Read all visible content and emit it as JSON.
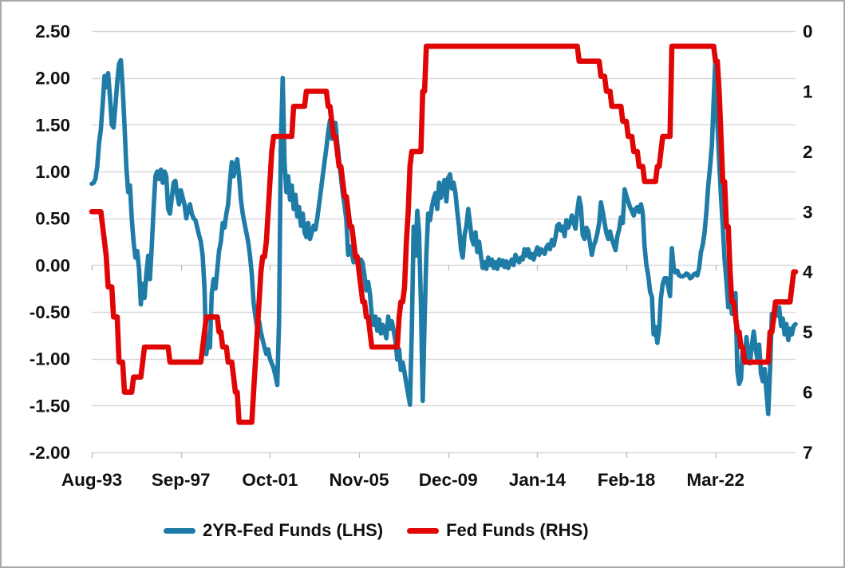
{
  "chart_data": {
    "type": "line",
    "title": "",
    "xlabel": "",
    "ylabel_left": "",
    "ylabel_right": "",
    "grid": true,
    "legend_position": "bottom",
    "x_start": "Aug-1993",
    "x_end": "Nov-2025",
    "x_frequency": "monthly",
    "x_tick_labels": [
      "Aug-93",
      "Sep-97",
      "Oct-01",
      "Nov-05",
      "Dec-09",
      "Jan-14",
      "Feb-18",
      "Mar-22"
    ],
    "x_tick_interval_months": 49,
    "left_axis": {
      "min": -2.0,
      "max": 2.5,
      "step": 0.5,
      "tick_labels": [
        "2.50",
        "2.00",
        "1.50",
        "1.00",
        "0.50",
        "0.00",
        "-0.50",
        "-1.00",
        "-1.50",
        "-2.00"
      ]
    },
    "right_axis": {
      "min": 0,
      "max": 7,
      "step": 1,
      "inverted": true,
      "tick_labels": [
        "0",
        "1",
        "2",
        "3",
        "4",
        "5",
        "6",
        "7"
      ]
    },
    "series": [
      {
        "name": "2YR-Fed Funds (LHS)",
        "axis": "left",
        "color": "#1f7ca6",
        "values": [
          0.87,
          0.88,
          0.92,
          1.05,
          1.3,
          1.45,
          1.72,
          2.02,
          1.9,
          2.05,
          1.8,
          1.5,
          1.47,
          1.7,
          1.95,
          2.15,
          2.19,
          1.9,
          1.5,
          1.05,
          0.78,
          0.85,
          0.5,
          0.25,
          0.08,
          0.15,
          -0.05,
          -0.42,
          -0.2,
          -0.35,
          -0.1,
          0.1,
          -0.15,
          0.2,
          0.6,
          0.95,
          1.0,
          0.92,
          1.02,
          0.88,
          1.0,
          0.95,
          0.6,
          0.55,
          0.72,
          0.88,
          0.9,
          0.75,
          0.65,
          0.8,
          0.72,
          0.65,
          0.5,
          0.6,
          0.65,
          0.55,
          0.5,
          0.48,
          0.4,
          0.32,
          0.25,
          0.1,
          -0.25,
          -0.95,
          -0.8,
          -0.88,
          -0.3,
          -0.15,
          -0.25,
          -0.05,
          0.15,
          0.25,
          0.45,
          0.4,
          0.55,
          0.65,
          0.9,
          1.1,
          0.95,
          1.05,
          1.13,
          0.95,
          0.7,
          0.55,
          0.45,
          0.35,
          0.25,
          0.1,
          -0.1,
          -0.4,
          -0.55,
          -0.68,
          -0.6,
          -0.72,
          -0.8,
          -0.88,
          -0.95,
          -0.9,
          -1.0,
          -1.05,
          -1.1,
          -1.18,
          -1.28,
          -0.6,
          1.3,
          2.0,
          1.1,
          0.78,
          0.95,
          0.7,
          0.85,
          0.6,
          0.75,
          0.52,
          0.62,
          0.42,
          0.55,
          0.35,
          0.3,
          0.45,
          0.28,
          0.35,
          0.42,
          0.38,
          0.5,
          0.65,
          0.8,
          0.95,
          1.1,
          1.25,
          1.42,
          1.55,
          1.35,
          1.48,
          1.52,
          1.3,
          1.12,
          0.95,
          0.77,
          0.64,
          0.48,
          0.11,
          0.2,
          0.13,
          0.03,
          0.06,
          0.1,
          -0.05,
          0.06,
          0.02,
          -0.12,
          -0.27,
          -0.18,
          -0.31,
          -0.55,
          -0.64,
          -0.55,
          -0.7,
          -0.58,
          -0.73,
          -0.64,
          -0.7,
          -0.78,
          -0.55,
          -0.68,
          -0.6,
          -0.7,
          -0.81,
          -1.01,
          -0.9,
          -1.12,
          -1.04,
          -1.15,
          -1.27,
          -1.38,
          -1.49,
          -0.7,
          0.41,
          0.1,
          0.58,
          0.35,
          -0.4,
          -1.45,
          -0.6,
          0.1,
          0.55,
          0.48,
          0.62,
          0.71,
          0.77,
          0.6,
          0.88,
          0.72,
          0.82,
          0.91,
          0.68,
          0.93,
          0.97,
          0.82,
          0.88,
          0.77,
          0.57,
          0.4,
          0.17,
          0.08,
          0.32,
          0.42,
          0.6,
          0.45,
          0.28,
          0.22,
          0.35,
          0.14,
          0.25,
          0.1,
          -0.03,
          0.03,
          -0.04,
          0.08,
          0.0,
          0.06,
          -0.03,
          0.03,
          -0.04,
          0.06,
          0.0,
          0.05,
          -0.02,
          0.04,
          -0.03,
          0.02,
          0.06,
          0.0,
          0.11,
          0.06,
          0.03,
          0.08,
          0.06,
          0.17,
          0.1,
          0.17,
          0.08,
          0.12,
          0.06,
          0.13,
          0.19,
          0.11,
          0.17,
          0.15,
          0.12,
          0.19,
          0.22,
          0.17,
          0.27,
          0.21,
          0.3,
          0.42,
          0.44,
          0.37,
          0.41,
          0.31,
          0.48,
          0.4,
          0.45,
          0.53,
          0.46,
          0.39,
          0.58,
          0.72,
          0.62,
          0.32,
          0.28,
          0.4,
          0.36,
          0.23,
          0.11,
          0.21,
          0.26,
          0.34,
          0.45,
          0.67,
          0.57,
          0.45,
          0.34,
          0.28,
          0.36,
          0.28,
          0.22,
          0.16,
          0.31,
          0.38,
          0.51,
          0.45,
          0.81,
          0.74,
          0.68,
          0.62,
          0.58,
          0.53,
          0.6,
          0.62,
          0.57,
          0.65,
          0.55,
          0.2,
          0.0,
          -0.11,
          -0.28,
          -0.34,
          -0.74,
          -0.66,
          -0.83,
          -0.68,
          -0.35,
          -0.2,
          -0.14,
          -0.14,
          -0.23,
          -0.33,
          0.18,
          -0.03,
          -0.08,
          -0.06,
          -0.11,
          -0.12,
          -0.12,
          -0.11,
          -0.09,
          -0.1,
          -0.14,
          -0.13,
          -0.1,
          -0.09,
          -0.11,
          -0.03,
          0.14,
          0.22,
          0.35,
          0.57,
          0.85,
          1.05,
          1.28,
          1.76,
          2.23,
          1.53,
          1.1,
          0.73,
          0.42,
          0.06,
          -0.17,
          -0.45,
          -0.28,
          -0.52,
          -0.48,
          -0.3,
          -1.13,
          -1.27,
          -1.22,
          -0.88,
          -1.0,
          -0.77,
          -0.95,
          -1.05,
          -0.85,
          -0.71,
          -0.88,
          -1.0,
          -0.85,
          -1.16,
          -1.24,
          -1.11,
          -1.35,
          -1.59,
          -1.11,
          -0.52,
          -0.6,
          -0.43,
          -0.54,
          -0.45,
          -0.65,
          -0.57,
          -0.74,
          -0.63,
          -0.8,
          -0.68,
          -0.74,
          -0.65,
          -0.63
        ]
      },
      {
        "name": "Fed Funds (RHS)",
        "axis": "right",
        "color": "#e00606",
        "values": [
          3,
          3,
          3,
          3,
          3,
          3,
          3.25,
          3.5,
          3.75,
          4.25,
          4.25,
          4.25,
          4.75,
          4.75,
          4.75,
          5.5,
          5.5,
          5.5,
          6,
          6,
          6,
          6,
          6,
          5.75,
          5.75,
          5.75,
          5.75,
          5.75,
          5.5,
          5.25,
          5.25,
          5.25,
          5.25,
          5.25,
          5.25,
          5.25,
          5.25,
          5.25,
          5.25,
          5.25,
          5.25,
          5.25,
          5.25,
          5.5,
          5.5,
          5.5,
          5.5,
          5.5,
          5.5,
          5.5,
          5.5,
          5.5,
          5.5,
          5.5,
          5.5,
          5.5,
          5.5,
          5.5,
          5.5,
          5.5,
          5.5,
          5.25,
          5,
          4.75,
          4.75,
          4.75,
          4.75,
          4.75,
          4.75,
          4.75,
          5,
          5,
          5.25,
          5.25,
          5.25,
          5.5,
          5.5,
          5.5,
          5.75,
          6,
          6,
          6.5,
          6.5,
          6.5,
          6.5,
          6.5,
          6.5,
          6.5,
          6.5,
          6,
          5.5,
          5,
          4.5,
          4,
          3.75,
          3.75,
          3.5,
          3,
          2.5,
          2,
          1.75,
          1.75,
          1.75,
          1.75,
          1.75,
          1.75,
          1.75,
          1.75,
          1.75,
          1.75,
          1.75,
          1.25,
          1.25,
          1.25,
          1.25,
          1.25,
          1.25,
          1.25,
          1,
          1,
          1,
          1,
          1,
          1,
          1,
          1,
          1,
          1,
          1,
          1,
          1.25,
          1.25,
          1.5,
          1.75,
          1.75,
          2,
          2.25,
          2.25,
          2.5,
          2.75,
          2.75,
          3,
          3.25,
          3.25,
          3.5,
          3.75,
          3.75,
          4,
          4.25,
          4.5,
          4.5,
          4.75,
          4.75,
          5,
          5.25,
          5.25,
          5.25,
          5.25,
          5.25,
          5.25,
          5.25,
          5.25,
          5.25,
          5.25,
          5.25,
          5.25,
          5.25,
          5.25,
          5.25,
          4.75,
          4.5,
          4.5,
          4.25,
          3.5,
          3,
          2.25,
          2,
          2,
          2,
          2,
          2,
          2,
          1,
          1,
          0.25,
          0.25,
          0.25,
          0.25,
          0.25,
          0.25,
          0.25,
          0.25,
          0.25,
          0.25,
          0.25,
          0.25,
          0.25,
          0.25,
          0.25,
          0.25,
          0.25,
          0.25,
          0.25,
          0.25,
          0.25,
          0.25,
          0.25,
          0.25,
          0.25,
          0.25,
          0.25,
          0.25,
          0.25,
          0.25,
          0.25,
          0.25,
          0.25,
          0.25,
          0.25,
          0.25,
          0.25,
          0.25,
          0.25,
          0.25,
          0.25,
          0.25,
          0.25,
          0.25,
          0.25,
          0.25,
          0.25,
          0.25,
          0.25,
          0.25,
          0.25,
          0.25,
          0.25,
          0.25,
          0.25,
          0.25,
          0.25,
          0.25,
          0.25,
          0.25,
          0.25,
          0.25,
          0.25,
          0.25,
          0.25,
          0.25,
          0.25,
          0.25,
          0.25,
          0.25,
          0.25,
          0.25,
          0.25,
          0.25,
          0.25,
          0.25,
          0.25,
          0.25,
          0.25,
          0.25,
          0.25,
          0.25,
          0.25,
          0.25,
          0.5,
          0.5,
          0.5,
          0.5,
          0.5,
          0.5,
          0.5,
          0.5,
          0.5,
          0.5,
          0.5,
          0.5,
          0.75,
          0.75,
          0.75,
          1,
          1,
          1,
          1.25,
          1.25,
          1.25,
          1.25,
          1.25,
          1.25,
          1.5,
          1.5,
          1.5,
          1.75,
          1.75,
          1.75,
          2,
          2,
          2,
          2.25,
          2.25,
          2.25,
          2.5,
          2.5,
          2.5,
          2.5,
          2.5,
          2.5,
          2.5,
          2.25,
          2.25,
          2,
          1.75,
          1.75,
          1.75,
          1.75,
          1.75,
          0.25,
          0.25,
          0.25,
          0.25,
          0.25,
          0.25,
          0.25,
          0.25,
          0.25,
          0.25,
          0.25,
          0.25,
          0.25,
          0.25,
          0.25,
          0.25,
          0.25,
          0.25,
          0.25,
          0.25,
          0.25,
          0.25,
          0.25,
          0.25,
          0.5,
          0.5,
          1,
          1.75,
          2.5,
          2.5,
          3.25,
          3.25,
          4,
          4.5,
          4.5,
          4.75,
          5,
          5,
          5.25,
          5.25,
          5.5,
          5.5,
          5.5,
          5.5,
          5.5,
          5.5,
          5.5,
          5.5,
          5.5,
          5.5,
          5.5,
          5.5,
          5.5,
          5.5,
          5,
          5,
          4.75,
          4.5,
          4.5,
          4.5,
          4.5,
          4.5,
          4.5,
          4.5,
          4.5,
          4.5,
          4.25,
          4,
          4
        ]
      }
    ]
  },
  "legend": {
    "items": [
      {
        "label": "2YR-Fed Funds (LHS)",
        "color": "#1f7ca6"
      },
      {
        "label": "Fed Funds (RHS)",
        "color": "#e00606"
      }
    ]
  },
  "style": {
    "gridline_color": "#d9d9d9",
    "tick_color": "#bfbfbf",
    "text_color": "#111111",
    "background": "#ffffff",
    "border_color": "#a9a9a9"
  }
}
